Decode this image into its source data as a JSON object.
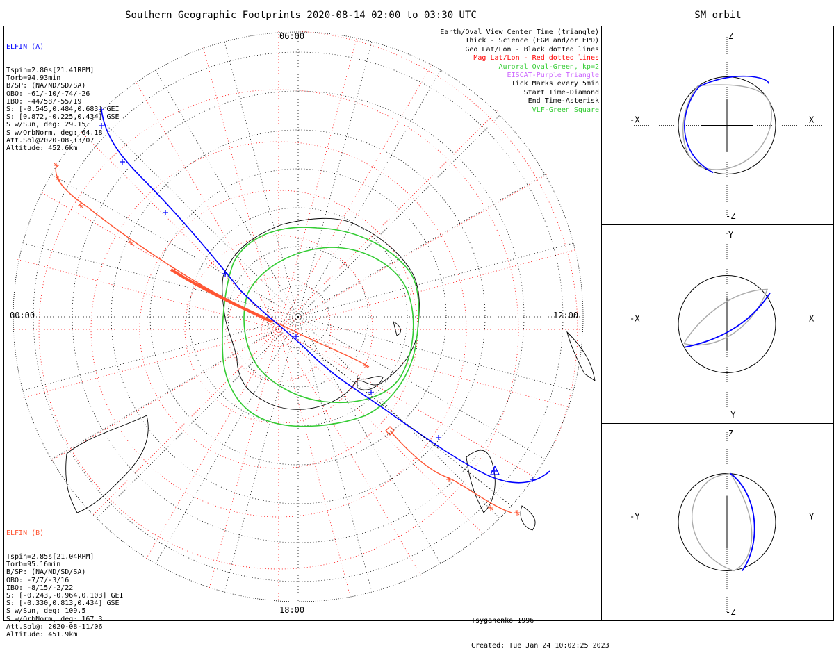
{
  "main": {
    "title": "Southern Geographic Footprints 2020-08-14 02:00 to 03:30 UTC",
    "time_labels": {
      "top": "06:00",
      "left": "00:00",
      "right": "12:00",
      "bottom": "18:00"
    }
  },
  "elfin_a": {
    "name": "ELFIN (A)",
    "color": "#0000ff",
    "lines": [
      "Tspin=2.80s[21.41RPM]",
      "Torb=94.93min",
      "B/SP: (NA/ND/SD/SA)",
      "OBO: -61/-10/-74/-26",
      "IBO: -44/58/-55/19",
      "S: [-0.545,0.484,0.683] GEI",
      "S: [0.872,-0.225,0.434] GSE",
      "S w/Sun, deg: 29.15",
      "S w/OrbNorm, deg: 64.18",
      "Att.Sol@2020-08-13/07",
      "Altitude: 452.6km"
    ]
  },
  "elfin_b": {
    "name": "ELFIN (B)",
    "color": "#ff5533",
    "lines": [
      "Tspin=2.85s[21.04RPM]",
      "Torb=95.16min",
      "B/SP: (NA/ND/SD/SA)",
      "OBO: -7/7/-3/16",
      "IBO: -8/15/-2/22",
      "S: [-0.243,-0.964,0.103] GEI",
      "S: [-0.330,0.813,0.434] GSE",
      "S w/Sun, deg: 109.5",
      "S w/OrbNorm, deg: 167.3",
      "Att.Sol@: 2020-08-11/06",
      "Altitude: 451.9km"
    ]
  },
  "legend": [
    {
      "text": "Earth/Oval View Center Time (triangle)",
      "color": "#000000"
    },
    {
      "text": "Thick - Science (FGM and/or EPD)",
      "color": "#000000"
    },
    {
      "text": "Geo Lat/Lon - Black dotted lines",
      "color": "#000000"
    },
    {
      "text": "Mag Lat/Lon - Red dotted lines",
      "color": "#ff0000"
    },
    {
      "text": "Auroral Oval-Green, kp=2",
      "color": "#33cc33"
    },
    {
      "text": "EISCAT-Purple Triangle",
      "color": "#cc66ff"
    },
    {
      "text": "Tick Marks every 5min",
      "color": "#000000"
    },
    {
      "text": "Start Time-Diamond",
      "color": "#000000"
    },
    {
      "text": "End Time-Asterisk",
      "color": "#000000"
    },
    {
      "text": "VLF-Green Square",
      "color": "#33cc33"
    }
  ],
  "footer": {
    "model": "Tsyganenko-1996",
    "created": "Created: Tue Jan 24 10:02:25 2023"
  },
  "sm_orbit": {
    "title": "SM orbit",
    "panels": [
      {
        "top": "Z",
        "bottom": "-Z",
        "left": "-X",
        "right": "X"
      },
      {
        "top": "Y",
        "bottom": "-Y",
        "left": "-X",
        "right": "X"
      },
      {
        "top": "Z",
        "bottom": "-Z",
        "left": "-Y",
        "right": "Y"
      }
    ]
  },
  "colors": {
    "elfin_a": "#0000ff",
    "elfin_b": "#ff5533",
    "oval": "#33cc33",
    "mag_grid": "#ff0000",
    "geo_grid": "#000000",
    "orbit_gray": "#aaaaaa"
  }
}
